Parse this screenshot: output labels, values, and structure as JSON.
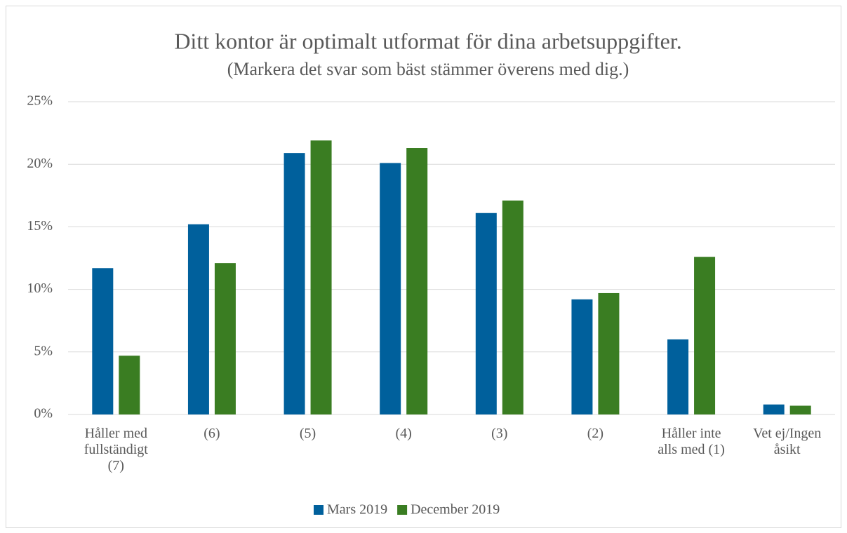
{
  "chart_data": {
    "type": "bar",
    "title": "Ditt kontor är optimalt utformat för dina arbetsuppgifter.",
    "subtitle": "(Markera det svar som bäst stämmer överens med dig.)",
    "categories": [
      "Håller med fullständigt (7)",
      "(6)",
      "(5)",
      "(4)",
      "(3)",
      "(2)",
      "Håller inte alls med (1)",
      "Vet ej/Ingen åsikt"
    ],
    "series": [
      {
        "name": "Mars 2019",
        "color": "#00609c",
        "values": [
          11.7,
          15.2,
          20.9,
          20.1,
          16.1,
          9.2,
          6.0,
          0.8
        ]
      },
      {
        "name": "December 2019",
        "color": "#3a7d22",
        "values": [
          4.7,
          12.1,
          21.9,
          21.3,
          17.1,
          9.7,
          12.6,
          0.7
        ]
      }
    ],
    "ylim": [
      0,
      25
    ],
    "yticks": [
      {
        "value": 0,
        "label": "0%"
      },
      {
        "value": 5,
        "label": "5%"
      },
      {
        "value": 10,
        "label": "10%"
      },
      {
        "value": 15,
        "label": "15%"
      },
      {
        "value": 20,
        "label": "20%"
      },
      {
        "value": 25,
        "label": "25%"
      }
    ],
    "grid": true,
    "legend": "bottom"
  }
}
